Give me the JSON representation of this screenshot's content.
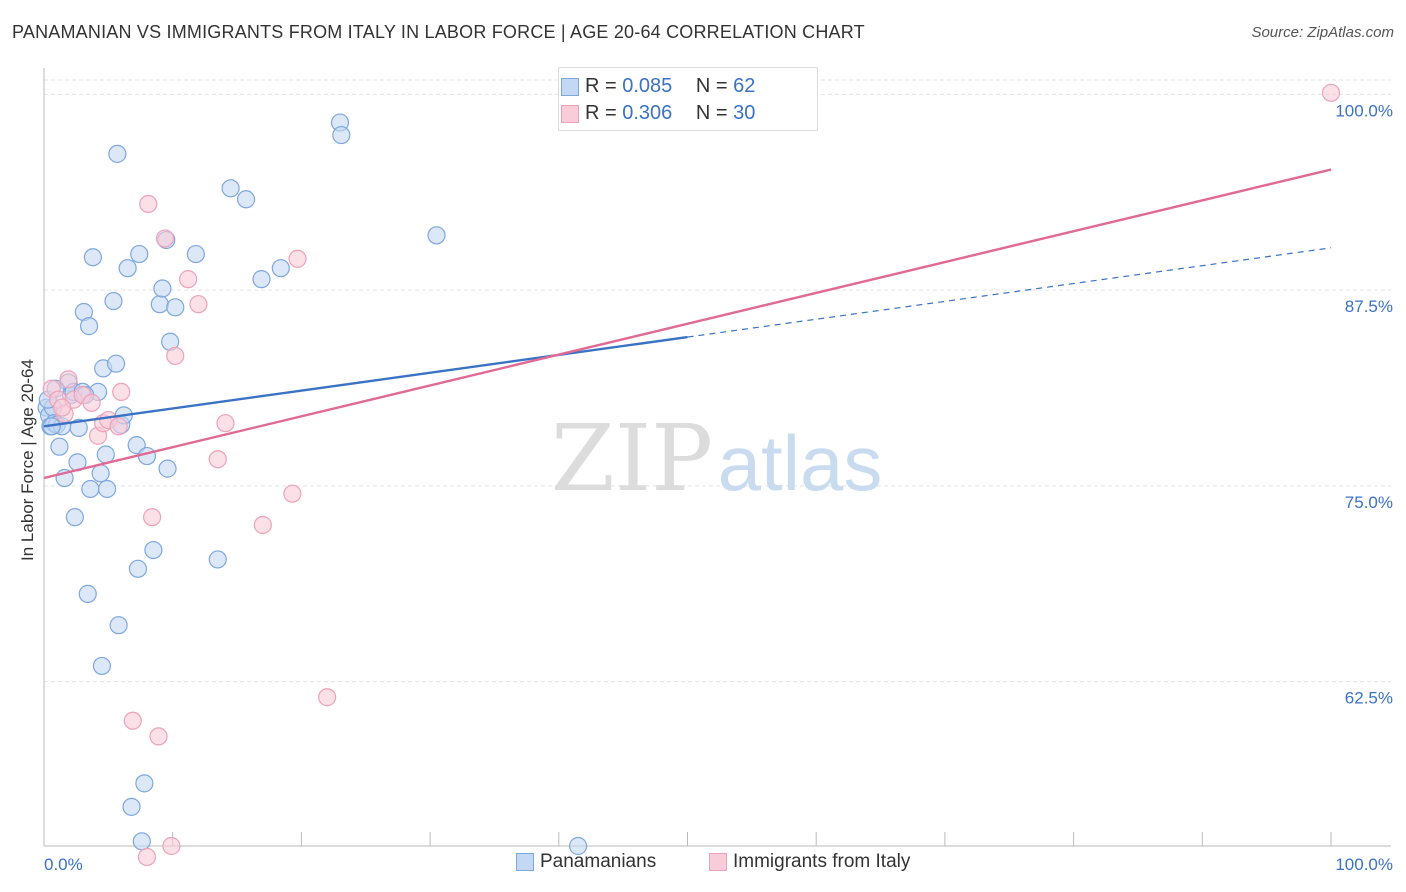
{
  "chart_data": {
    "type": "scatter",
    "title": "PANAMANIAN VS IMMIGRANTS FROM ITALY IN LABOR FORCE | AGE 20-64 CORRELATION CHART",
    "source": "Source: ZipAtlas.com",
    "ylabel": "In Labor Force | Age 20-64",
    "xlim": [
      0,
      100
    ],
    "ylim": [
      52,
      101.3
    ],
    "x_tick_labels": [
      "0.0%",
      "100.0%"
    ],
    "y_ticks": [
      {
        "value": 100,
        "label": "100.0%"
      },
      {
        "value": 87.5,
        "label": "87.5%"
      },
      {
        "value": 75,
        "label": "75.0%"
      },
      {
        "value": 62.5,
        "label": "62.5%"
      }
    ],
    "watermark": {
      "zip": "ZIP",
      "atlas": "atlas"
    },
    "series": [
      {
        "name": "Panamanians",
        "color": "#3a72c4",
        "fill": "#c5d8f3",
        "stroke": "#7ea7de",
        "R": "0.085",
        "N": "62",
        "trend": {
          "x0": 0,
          "y0": 78.8,
          "x1": 50,
          "y1": 84.5,
          "dashed_to_x": 100,
          "dashed_to_y": 90.2
        },
        "points": [
          [
            0.2,
            80
          ],
          [
            0.4,
            79.5
          ],
          [
            0.5,
            78.8
          ],
          [
            0.7,
            80
          ],
          [
            0.8,
            79
          ],
          [
            1.0,
            78.9
          ],
          [
            1.2,
            77.5
          ],
          [
            1.4,
            78.8
          ],
          [
            1.6,
            75.5
          ],
          [
            1.9,
            81.6
          ],
          [
            2.1,
            80.8
          ],
          [
            2.4,
            73
          ],
          [
            2.6,
            76.5
          ],
          [
            2.7,
            78.7
          ],
          [
            3.1,
            86.1
          ],
          [
            3.4,
            68.1
          ],
          [
            3.5,
            85.2
          ],
          [
            3.6,
            74.8
          ],
          [
            3.8,
            89.6
          ],
          [
            4.2,
            81
          ],
          [
            4.4,
            75.8
          ],
          [
            4.5,
            63.5
          ],
          [
            4.6,
            82.5
          ],
          [
            4.8,
            77
          ],
          [
            4.9,
            74.8
          ],
          [
            5.4,
            86.8
          ],
          [
            5.6,
            82.8
          ],
          [
            5.7,
            96.2
          ],
          [
            5.8,
            66.1
          ],
          [
            6.0,
            78.9
          ],
          [
            6.2,
            79.5
          ],
          [
            6.5,
            88.9
          ],
          [
            6.8,
            54.5
          ],
          [
            7.2,
            77.6
          ],
          [
            7.3,
            69.7
          ],
          [
            7.4,
            89.8
          ],
          [
            7.6,
            52.3
          ],
          [
            7.8,
            56
          ],
          [
            8.0,
            76.9
          ],
          [
            8.5,
            70.9
          ],
          [
            9.0,
            86.6
          ],
          [
            9.2,
            87.6
          ],
          [
            9.5,
            90.7
          ],
          [
            9.6,
            76.1
          ],
          [
            9.8,
            84.2
          ],
          [
            10.2,
            86.4
          ],
          [
            11.8,
            89.8
          ],
          [
            13.5,
            70.3
          ],
          [
            14.5,
            94
          ],
          [
            15.7,
            93.3
          ],
          [
            16.9,
            88.2
          ],
          [
            18.4,
            88.9
          ],
          [
            23.0,
            98.2
          ],
          [
            23.1,
            97.4
          ],
          [
            30.5,
            91
          ],
          [
            41.5,
            52
          ],
          [
            0.3,
            80.5
          ],
          [
            0.9,
            81.2
          ],
          [
            2.3,
            81
          ],
          [
            3.0,
            81
          ],
          [
            3.2,
            80.8
          ],
          [
            0.6,
            78.8
          ]
        ]
      },
      {
        "name": "Immigrants from Italy",
        "color": "#e06a94",
        "fill": "#f8ccd9",
        "stroke": "#eca2bb",
        "R": "0.306",
        "N": "30",
        "trend": {
          "x0": 0,
          "y0": 75.5,
          "x1": 100,
          "y1": 95.2
        },
        "points": [
          [
            0.6,
            81.2
          ],
          [
            1.1,
            80.5
          ],
          [
            1.6,
            79.6
          ],
          [
            1.9,
            81.8
          ],
          [
            2.3,
            80.5
          ],
          [
            3.0,
            80.8
          ],
          [
            3.7,
            80.3
          ],
          [
            4.2,
            78.2
          ],
          [
            4.6,
            79
          ],
          [
            5.0,
            79.2
          ],
          [
            5.8,
            78.8
          ],
          [
            6.0,
            81
          ],
          [
            6.9,
            60
          ],
          [
            8.0,
            51.3
          ],
          [
            8.1,
            93
          ],
          [
            8.4,
            73
          ],
          [
            8.9,
            59
          ],
          [
            9.4,
            90.8
          ],
          [
            9.9,
            52
          ],
          [
            10.2,
            83.3
          ],
          [
            11.2,
            88.2
          ],
          [
            12.0,
            86.6
          ],
          [
            13.5,
            76.7
          ],
          [
            14.1,
            79
          ],
          [
            17.0,
            72.5
          ],
          [
            19.3,
            74.5
          ],
          [
            19.7,
            89.5
          ],
          [
            22.0,
            61.5
          ],
          [
            100.0,
            100.1
          ],
          [
            1.4,
            80
          ]
        ]
      }
    ],
    "legend": [
      "Panamanians",
      "Immigrants from Italy"
    ]
  }
}
